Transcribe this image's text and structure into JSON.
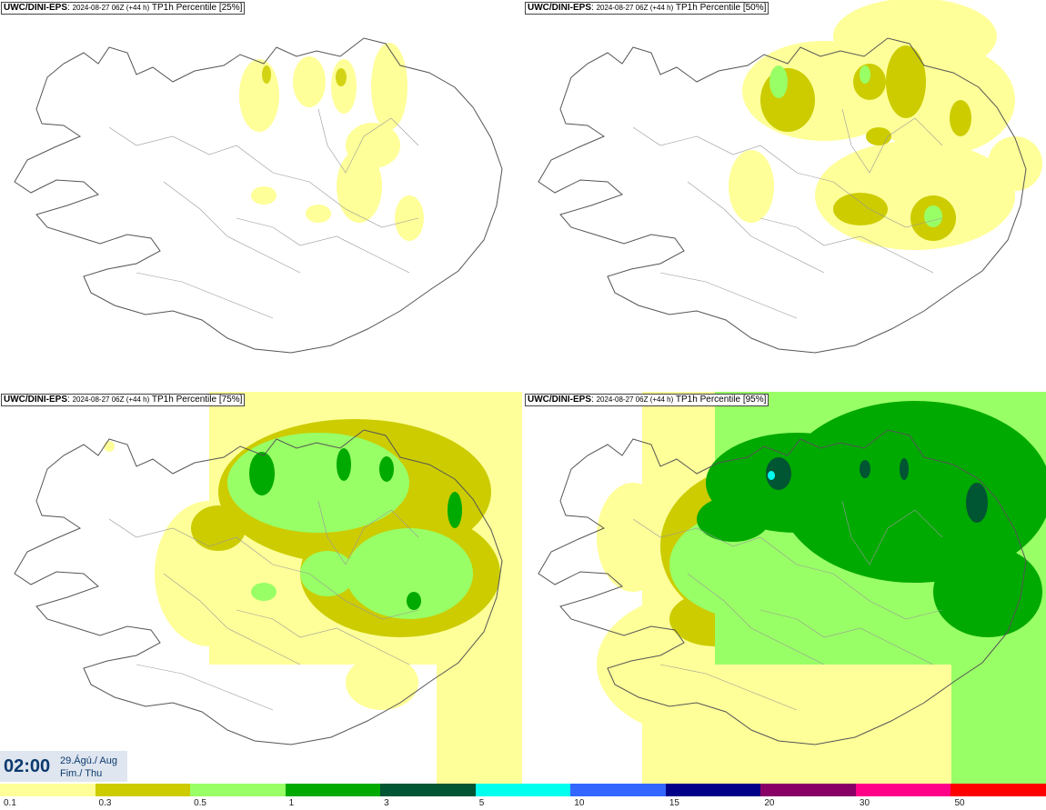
{
  "panels": [
    {
      "model": "UWC/DINI-EPS",
      "run": "2024-08-27 06Z (+44 h)",
      "field": "TP1h Percentile [25%]"
    },
    {
      "model": "UWC/DINI-EPS",
      "run": "2024-08-27 06Z (+44 h)",
      "field": "TP1h Percentile [50%]"
    },
    {
      "model": "UWC/DINI-EPS",
      "run": "2024-08-27 06Z (+44 h)",
      "field": "TP1h Percentile [75%]"
    },
    {
      "model": "UWC/DINI-EPS",
      "run": "2024-08-27 06Z (+44 h)",
      "field": "TP1h Percentile [95%]"
    }
  ],
  "valid_time": {
    "time": "02:00",
    "date": "29.Ágú./ Aug",
    "day": "Fim./ Thu"
  },
  "legend": {
    "ticks": [
      "0.1",
      "0.3",
      "0.5",
      "1",
      "3",
      "5",
      "10",
      "15",
      "20",
      "30",
      "50"
    ],
    "colors": [
      "#ffff99",
      "#cccc00",
      "#99ff66",
      "#00aa00",
      "#005533",
      "#00ffee",
      "#3366ff",
      "#000088",
      "#880066",
      "#ff0088",
      "#ff0000"
    ]
  }
}
